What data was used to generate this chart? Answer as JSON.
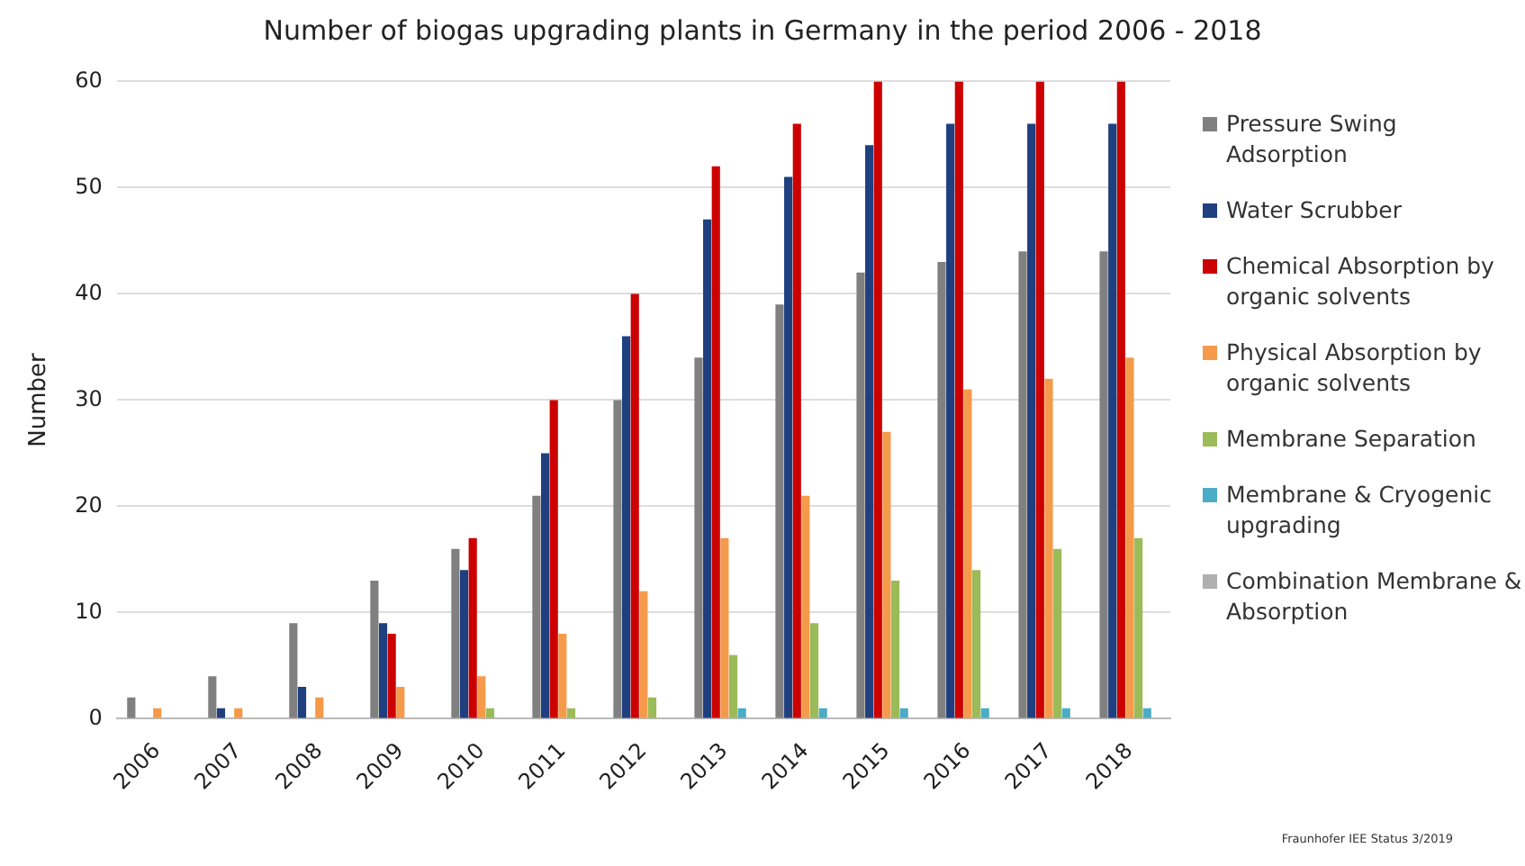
{
  "chart_data": {
    "type": "bar",
    "title": "Number of biogas upgrading plants in Germany in the period 2006 - 2018",
    "ylabel": "Number",
    "categories": [
      "2006",
      "2007",
      "2008",
      "2009",
      "2010",
      "2011",
      "2012",
      "2013",
      "2014",
      "2015",
      "2016",
      "2017",
      "2018"
    ],
    "series": [
      {
        "name": "Pressure Swing Adsorption",
        "color": "#808080",
        "values": [
          2,
          4,
          9,
          13,
          16,
          21,
          30,
          34,
          39,
          42,
          43,
          44,
          44
        ]
      },
      {
        "name": "Water Scrubber",
        "color": "#1f3f7f",
        "values": [
          0,
          1,
          3,
          9,
          14,
          25,
          36,
          47,
          51,
          54,
          56,
          56,
          56
        ]
      },
      {
        "name": "Chemical Absorption by organic solvents",
        "color": "#cc0000",
        "values": [
          0,
          0,
          0,
          8,
          17,
          30,
          40,
          52,
          56,
          60,
          60,
          60,
          60
        ]
      },
      {
        "name": "Physical Absorption by organic solvents",
        "color": "#f59a4a",
        "values": [
          1,
          1,
          2,
          3,
          4,
          8,
          12,
          17,
          21,
          27,
          31,
          32,
          34
        ]
      },
      {
        "name": "Membrane Separation",
        "color": "#9bbb59",
        "values": [
          0,
          0,
          0,
          0,
          1,
          1,
          2,
          6,
          9,
          13,
          14,
          16,
          17
        ]
      },
      {
        "name": "Membrane & Cryogenic upgrading",
        "color": "#4bacc6",
        "values": [
          0,
          0,
          0,
          0,
          0,
          0,
          0,
          1,
          1,
          1,
          1,
          1,
          1
        ]
      },
      {
        "name": "Combination Membrane & Absorption",
        "color": "#b0b0b0",
        "values": [
          0,
          0,
          0,
          0,
          0,
          0,
          0,
          0,
          0,
          0,
          0,
          0,
          0
        ]
      }
    ],
    "ylim": [
      0,
      60
    ],
    "yticks": [
      0,
      10,
      20,
      30,
      40,
      50,
      60
    ],
    "grid": "y",
    "legend": "right",
    "annotations": [
      "Fraunhofer IEE Status 3/2019"
    ]
  }
}
